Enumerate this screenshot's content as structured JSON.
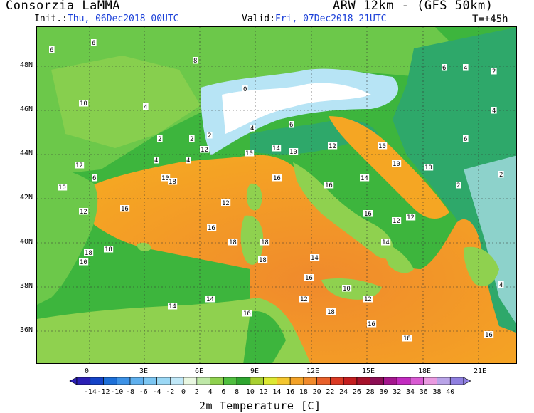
{
  "header": {
    "title_left": "Consorzia LaMMA",
    "title_right": "ARW 12km - (GFS 50km)",
    "init_label": "Init.:",
    "init_value": "Thu, 06Dec2018 00UTC",
    "valid_label": "Valid:",
    "valid_value": "Fri, 07Dec2018 21UTC",
    "lead_time": "T=+45h"
  },
  "map": {
    "lat_labels": [
      "48N",
      "46N",
      "44N",
      "42N",
      "40N",
      "38N",
      "36N"
    ],
    "lon_labels": [
      "0",
      "3E",
      "6E",
      "9E",
      "12E",
      "15E",
      "18E",
      "21E"
    ],
    "field_values": [
      "6",
      "6",
      "10",
      "4",
      "2",
      "2",
      "4",
      "10",
      "4",
      "12",
      "10",
      "14",
      "10",
      "16",
      "18",
      "16",
      "12",
      "18",
      "18",
      "18",
      "16",
      "12",
      "14",
      "14",
      "18",
      "10",
      "12",
      "10",
      "16",
      "18",
      "12",
      "6",
      "8",
      "2",
      "0",
      "4",
      "6",
      "12",
      "16",
      "14",
      "10",
      "10",
      "12",
      "16",
      "14",
      "10",
      "12",
      "18",
      "16",
      "14",
      "12",
      "10",
      "6",
      "4",
      "2",
      "2",
      "6",
      "4",
      "2",
      "2",
      "4",
      "16",
      "16",
      "18"
    ],
    "colors": {
      "sea_warm": "#f5a623",
      "sea_hot": "#f08a2c",
      "land_mild": "#8fd14f",
      "land_green": "#3db53d",
      "land_cool": "#2ea86a",
      "alpine": "#b7e4f5",
      "snow": "#ffffff"
    }
  },
  "colorbar": {
    "ticks": [
      "-14",
      "-12",
      "-10",
      "-8",
      "-6",
      "-4",
      "-2",
      "0",
      "2",
      "4",
      "6",
      "8",
      "10",
      "12",
      "14",
      "16",
      "18",
      "20",
      "22",
      "24",
      "26",
      "28",
      "30",
      "32",
      "34",
      "36",
      "38",
      "40"
    ],
    "colors": [
      "#2b1fb5",
      "#1443c7",
      "#1c6fd8",
      "#3d92e6",
      "#5fb0ee",
      "#7cc6f2",
      "#9bd8f5",
      "#c0e8f8",
      "#e9f7e1",
      "#bfe8a8",
      "#8fd14f",
      "#4fbf3f",
      "#2ea52f",
      "#a8d030",
      "#dde832",
      "#f4c62e",
      "#f3a227",
      "#f08a2c",
      "#e8602a",
      "#db3a24",
      "#c41e1f",
      "#a6112a",
      "#8c0e54",
      "#a4168e",
      "#c22bc0",
      "#d85ad2",
      "#e99ae0",
      "#b9a4e8",
      "#8f7fe0"
    ],
    "title": "2m Temperature [C]"
  }
}
